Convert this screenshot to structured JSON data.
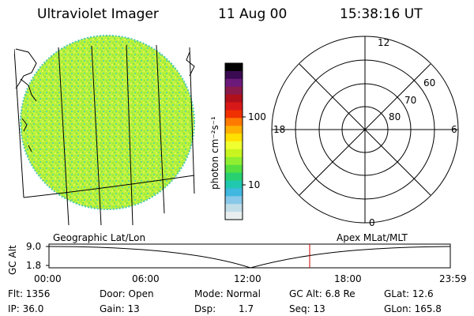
{
  "header": {
    "instrument": "Ultraviolet Imager",
    "date": "11 Aug 00",
    "time": "15:38:16 UT"
  },
  "colorbar": {
    "unit_label": "photon cm⁻²s⁻¹",
    "ticks": [
      "100",
      "10"
    ],
    "colors": [
      "#000000",
      "#3a0a52",
      "#6b1a7a",
      "#8a1a4a",
      "#b0101a",
      "#d81818",
      "#f03000",
      "#ff7a00",
      "#ffb000",
      "#ffe000",
      "#f0ff30",
      "#c8f520",
      "#90ee30",
      "#55e040",
      "#28d070",
      "#20c8b0",
      "#40b8e0",
      "#88c8e8",
      "#c0dde8",
      "#e8eef0"
    ],
    "scale": "log"
  },
  "polar_plot": {
    "mlt_labels": [
      "12",
      "18",
      "6",
      "0"
    ],
    "mlat_labels": [
      "60",
      "70",
      "80"
    ]
  },
  "projections": {
    "left": "Geographic Lat/Lon",
    "right": "Apex MLat/MLT"
  },
  "altitude_plot": {
    "ylabel": "GC Alt",
    "yticks": [
      "9.0",
      "1.8"
    ],
    "xticks": [
      "00:00",
      "06:00",
      "12:00",
      "18:00",
      "23:59"
    ],
    "current_time_marker": "15:38"
  },
  "status": {
    "flt": "Flt: 1356",
    "door": "Door: Open",
    "mode": "Mode: Normal",
    "gc_alt": "GC Alt: 6.8 Re",
    "glat": "GLat: 12.6",
    "ip": "IP: 36.0",
    "gain": "Gain: 13",
    "dsp_label": "Dsp:",
    "dsp_value": "1.7",
    "seq": "Seq: 13",
    "glon": "GLon: 165.8"
  }
}
